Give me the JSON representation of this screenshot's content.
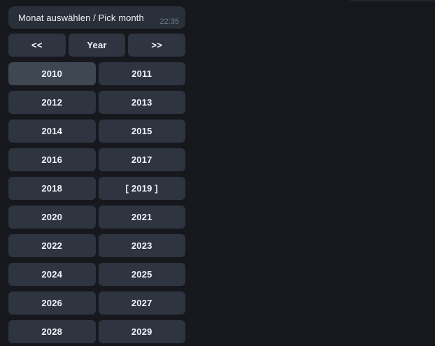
{
  "colors": {
    "background": "#16181e",
    "bubble_background": "#2a303a",
    "button_background": "#2e3440",
    "button_highlight": "#3f4753",
    "text": "#f1f4f8",
    "timestamp": "#6f7987"
  },
  "message": {
    "text": "Monat auswählen / Pick month",
    "time": "22:35"
  },
  "nav": {
    "prev": "<<",
    "year": "Year",
    "next": ">>"
  },
  "year_grid": {
    "highlighted_year": "2010",
    "selected_year_display": "[ 2019 ]",
    "items": [
      "2010",
      "2011",
      "2012",
      "2013",
      "2014",
      "2015",
      "2016",
      "2017",
      "2018",
      "[ 2019 ]",
      "2020",
      "2021",
      "2022",
      "2023",
      "2024",
      "2025",
      "2026",
      "2027",
      "2028",
      "2029"
    ]
  }
}
